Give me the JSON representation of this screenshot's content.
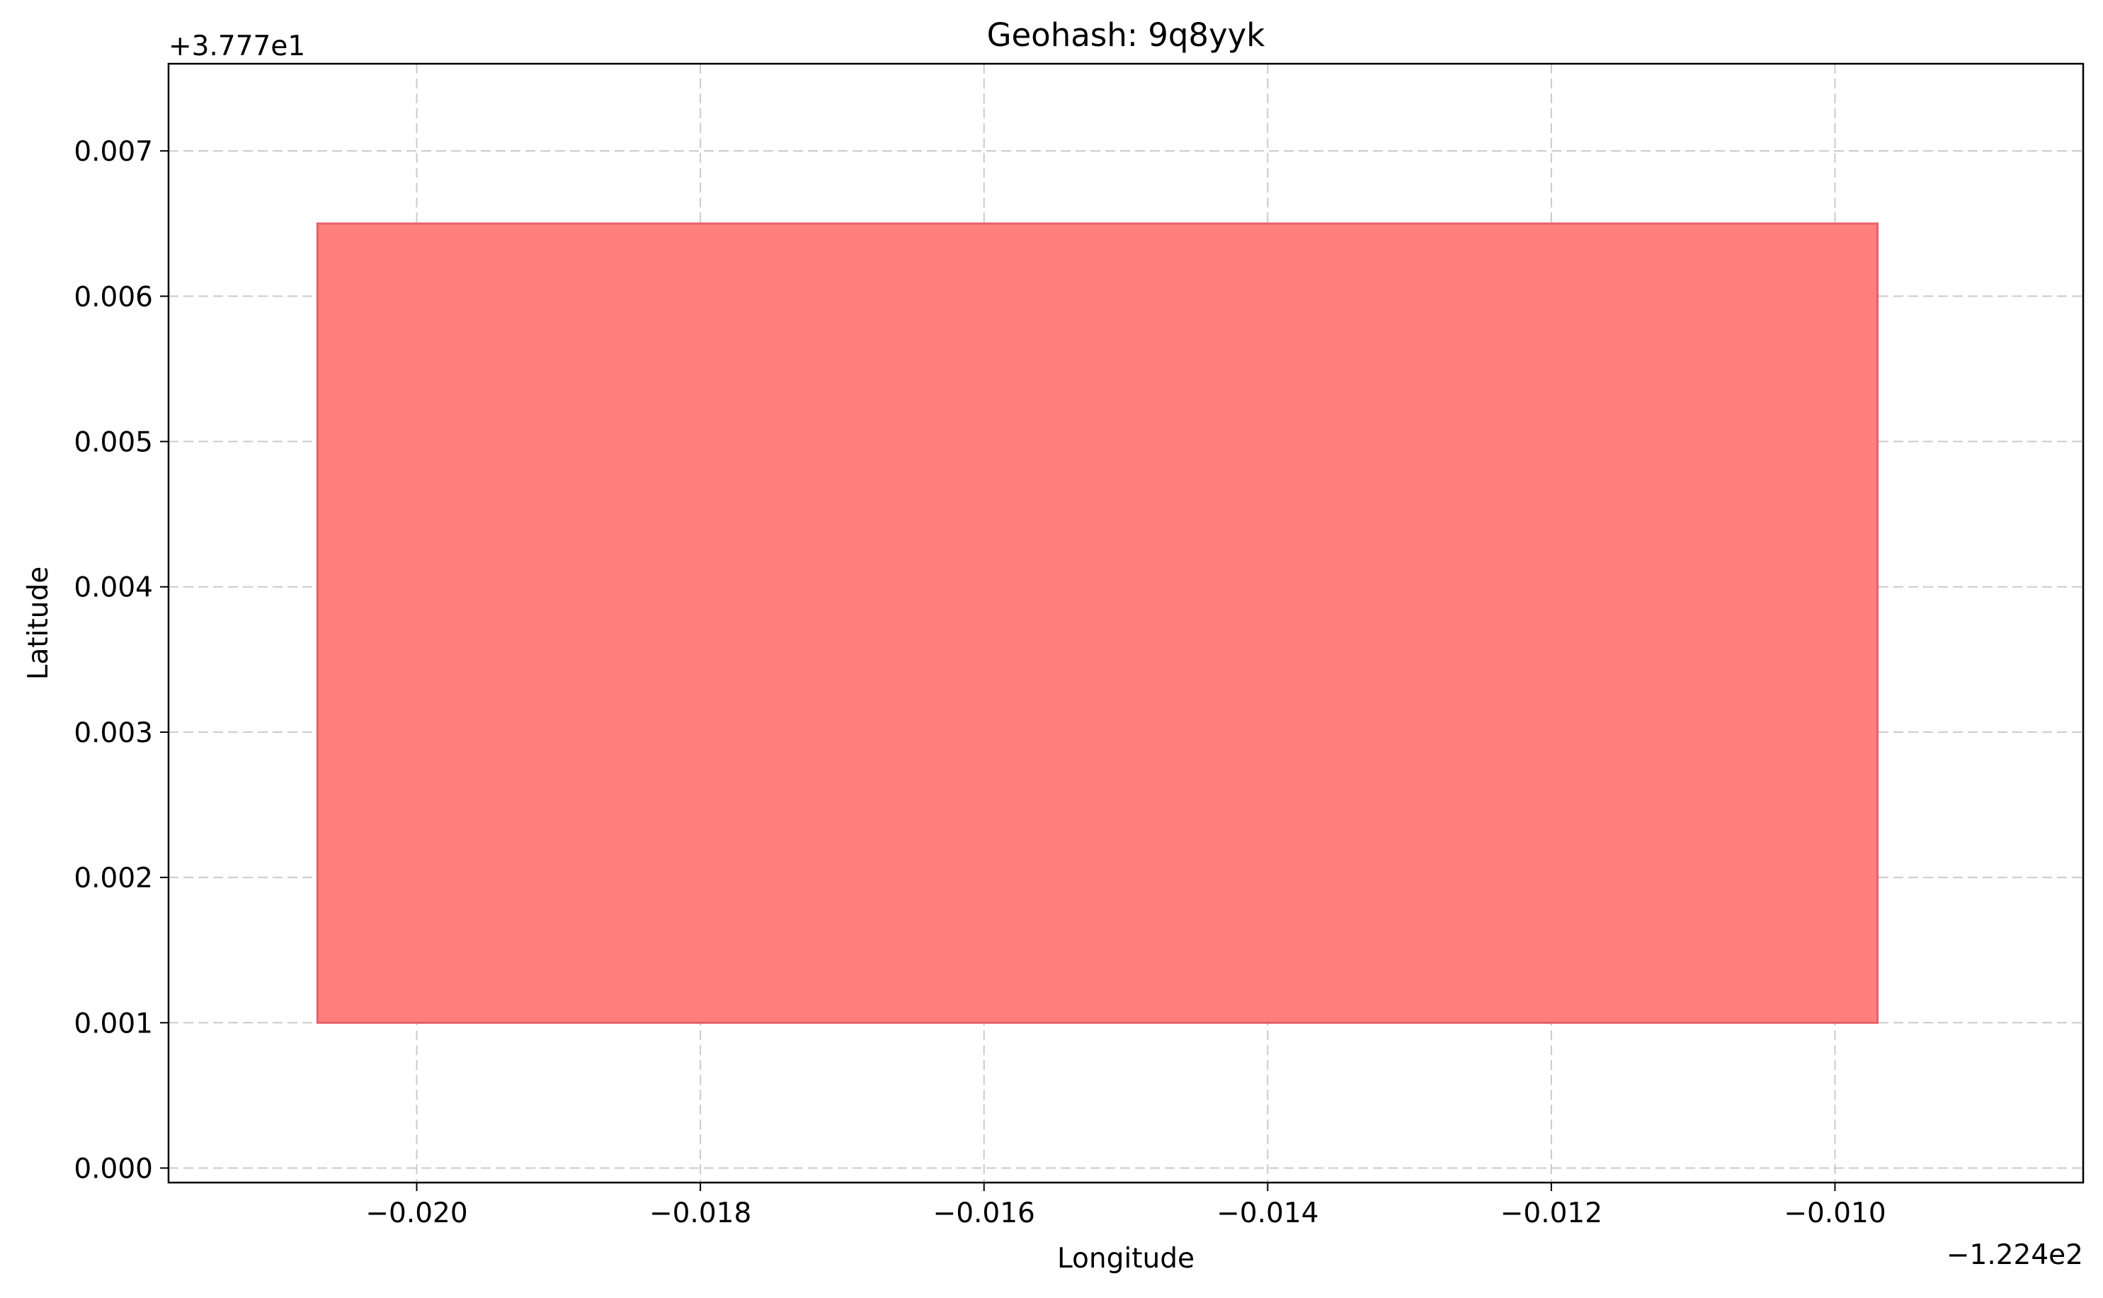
{
  "chart_data": {
    "type": "area",
    "title": "Geohash: 9q8yyk",
    "xlabel": "Longitude",
    "ylabel": "Latitude",
    "x_offset_label": "−1.224e2",
    "y_offset_label": "+3.777e1",
    "xlim": [
      -0.02175,
      -0.00825
    ],
    "ylim": [
      -0.0001,
      0.0076
    ],
    "x_ticks": [
      -0.02,
      -0.018,
      -0.016,
      -0.014,
      -0.012,
      -0.01
    ],
    "x_tick_labels": [
      "−0.020",
      "−0.018",
      "−0.016",
      "−0.014",
      "−0.012",
      "−0.010"
    ],
    "y_ticks": [
      0.0,
      0.001,
      0.002,
      0.003,
      0.004,
      0.005,
      0.006,
      0.007
    ],
    "y_tick_labels": [
      "0.000",
      "0.001",
      "0.002",
      "0.003",
      "0.004",
      "0.005",
      "0.006",
      "0.007"
    ],
    "grid": true,
    "rectangle": {
      "x_min": -0.0207,
      "x_max": -0.0097,
      "y_min": 0.001,
      "y_max": 0.0065,
      "fill_color": "#ff7f7f",
      "edge_color": "#e8606a"
    }
  }
}
